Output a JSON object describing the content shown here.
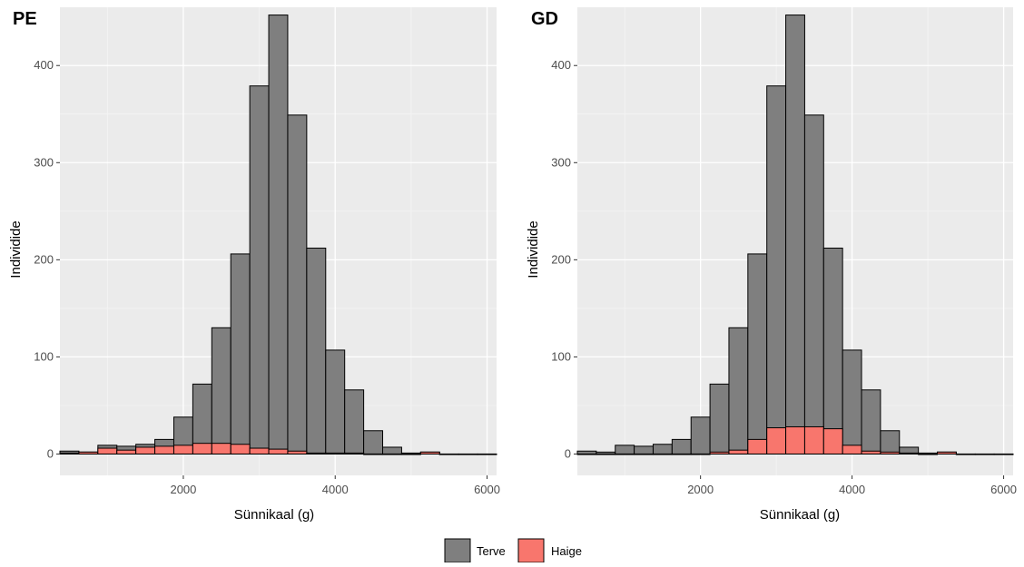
{
  "chart_data": [
    {
      "type": "bar",
      "title": "PE",
      "xlabel": "Sünnikaal (g)",
      "ylabel": "Individide",
      "x_bin_centers": [
        500,
        750,
        1000,
        1250,
        1500,
        1750,
        2000,
        2250,
        2500,
        2750,
        3000,
        3250,
        3500,
        3750,
        4000,
        4250,
        4500,
        4750,
        5000,
        5250,
        5500,
        5750,
        6000
      ],
      "xlim": [
        375,
        6125
      ],
      "ylim": [
        -22,
        460
      ],
      "x_ticks": [
        2000,
        4000,
        6000
      ],
      "y_ticks": [
        0,
        100,
        200,
        300,
        400
      ],
      "grid": true,
      "series": [
        {
          "name": "Terve",
          "values": [
            3,
            2,
            9,
            8,
            10,
            15,
            38,
            72,
            130,
            206,
            379,
            452,
            349,
            212,
            107,
            66,
            24,
            7,
            1,
            2,
            0,
            0,
            0
          ]
        },
        {
          "name": "Haige",
          "values": [
            1,
            2,
            6,
            4,
            7,
            8,
            9,
            11,
            11,
            10,
            6,
            5,
            3,
            1,
            1,
            1,
            0,
            0,
            0,
            2,
            0,
            0,
            0
          ]
        }
      ]
    },
    {
      "type": "bar",
      "title": "GD",
      "xlabel": "Sünnikaal (g)",
      "ylabel": "Individide",
      "x_bin_centers": [
        500,
        750,
        1000,
        1250,
        1500,
        1750,
        2000,
        2250,
        2500,
        2750,
        3000,
        3250,
        3500,
        3750,
        4000,
        4250,
        4500,
        4750,
        5000,
        5250,
        5500,
        5750,
        6000
      ],
      "xlim": [
        375,
        6125
      ],
      "ylim": [
        -22,
        460
      ],
      "x_ticks": [
        2000,
        4000,
        6000
      ],
      "y_ticks": [
        0,
        100,
        200,
        300,
        400
      ],
      "grid": true,
      "series": [
        {
          "name": "Terve",
          "values": [
            3,
            2,
            9,
            8,
            10,
            15,
            38,
            72,
            130,
            206,
            379,
            452,
            349,
            212,
            107,
            66,
            24,
            7,
            1,
            2,
            0,
            0,
            0
          ]
        },
        {
          "name": "Haige",
          "values": [
            0,
            0,
            0,
            0,
            0,
            0,
            0,
            2,
            4,
            15,
            27,
            28,
            28,
            26,
            9,
            3,
            2,
            1,
            0,
            2,
            0,
            0,
            0
          ]
        }
      ]
    }
  ],
  "legend": {
    "position": "bottom",
    "items": [
      {
        "label": "Terve",
        "color": "#7f7f7f"
      },
      {
        "label": "Haige",
        "color": "#f8766d"
      }
    ]
  }
}
